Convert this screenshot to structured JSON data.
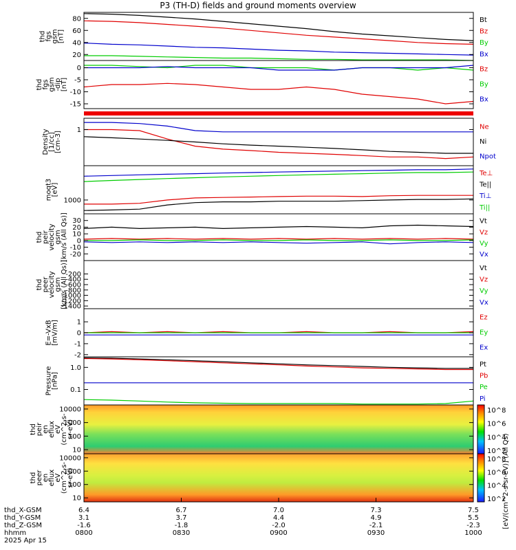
{
  "title": "P3 (TH-D) fields and ground moments overview",
  "colors": {
    "black": "#000000",
    "red": "#e00000",
    "green": "#00cc00",
    "blue": "#0000cc"
  },
  "chart_data": [
    {
      "type": "line",
      "ylabel": [
        "thd",
        "fgs",
        "gsm",
        "[nT]"
      ],
      "ylim": [
        10,
        90
      ],
      "yticks": [
        "80",
        "60",
        "40",
        "20"
      ],
      "series": [
        {
          "name": "Bt",
          "color": "black",
          "values": [
            88,
            87,
            85,
            82,
            79,
            75,
            71,
            67,
            63,
            58,
            54,
            51,
            48,
            45,
            43
          ]
        },
        {
          "name": "Bz",
          "color": "red",
          "values": [
            76,
            75,
            73,
            70,
            67,
            64,
            60,
            56,
            52,
            49,
            46,
            43,
            40,
            38,
            37
          ]
        },
        {
          "name": "By",
          "color": "green",
          "values": [
            18,
            18,
            17,
            16,
            15,
            14,
            14,
            13,
            12,
            12,
            11,
            11,
            11,
            11,
            10
          ]
        },
        {
          "name": "Bx",
          "color": "blue",
          "values": [
            39,
            37,
            36,
            34,
            32,
            31,
            29,
            27,
            26,
            24,
            23,
            22,
            21,
            20,
            19
          ]
        }
      ]
    },
    {
      "type": "line",
      "ylabel": [
        "thd",
        "fgs",
        "gsm",
        "-dip",
        "[nT]"
      ],
      "ylim": [
        -17,
        3
      ],
      "yticks": [
        "0",
        "-5",
        "-10",
        "-15"
      ],
      "series": [
        {
          "name": "Bz",
          "color": "red",
          "values": [
            -8,
            -7,
            -7,
            -6.5,
            -7,
            -8,
            -9,
            -9,
            -8,
            -9,
            -11,
            -12,
            -13,
            -15,
            -14
          ]
        },
        {
          "name": "By",
          "color": "green",
          "values": [
            1,
            1,
            0.5,
            0,
            1,
            1,
            0,
            0,
            0,
            -1,
            0,
            0,
            -1,
            0,
            -1
          ]
        },
        {
          "name": "Bx",
          "color": "blue",
          "values": [
            0,
            0,
            0,
            0.5,
            0,
            0,
            0,
            -1,
            -1,
            -1,
            0,
            0,
            0,
            0,
            1
          ]
        }
      ]
    },
    {
      "type": "line",
      "ylabel": [
        "Density",
        "[1/cc]",
        "[cm-3]"
      ],
      "ylim": [
        0.03,
        3
      ],
      "yticks": [
        "1"
      ],
      "series": [
        {
          "name": "Ne",
          "color": "red",
          "values": [
            1,
            1,
            0.9,
            0.4,
            0.2,
            0.15,
            0.13,
            0.11,
            0.1,
            0.09,
            0.08,
            0.07,
            0.07,
            0.06,
            0.07
          ]
        },
        {
          "name": "Ni",
          "color": "black",
          "values": [
            0.5,
            0.45,
            0.4,
            0.35,
            0.3,
            0.25,
            0.22,
            0.2,
            0.18,
            0.16,
            0.14,
            0.12,
            0.11,
            0.1,
            0.1
          ]
        },
        {
          "name": "Npot",
          "color": "blue",
          "values": [
            2,
            2,
            1.8,
            1.4,
            0.9,
            0.8,
            0.8,
            0.8,
            0.8,
            0.8,
            0.8,
            0.8,
            0.8,
            0.8,
            0.8
          ]
        }
      ]
    },
    {
      "type": "line",
      "ylabel": [
        "moqt3",
        "[eV]"
      ],
      "ylim": [
        300,
        20000
      ],
      "yticks": [
        "1000"
      ],
      "series": [
        {
          "name": "Te⊥",
          "color": "red",
          "values": [
            700,
            700,
            750,
            1000,
            1200,
            1250,
            1300,
            1350,
            1400,
            1400,
            1350,
            1450,
            1500,
            1500,
            1500
          ]
        },
        {
          "name": "Te||",
          "color": "black",
          "values": [
            400,
            420,
            450,
            650,
            800,
            850,
            850,
            900,
            900,
            900,
            950,
            1000,
            1050,
            1050,
            1100
          ]
        },
        {
          "name": "Ti⊥",
          "color": "blue",
          "values": [
            8000,
            8500,
            9000,
            9500,
            10000,
            10500,
            11000,
            11500,
            12000,
            12500,
            13000,
            13500,
            14000,
            14000,
            15000
          ]
        },
        {
          "name": "Ti||",
          "color": "green",
          "values": [
            5000,
            5500,
            6000,
            6500,
            7000,
            7500,
            8000,
            8500,
            9000,
            9500,
            10000,
            10500,
            11000,
            11000,
            11500
          ]
        }
      ]
    },
    {
      "type": "line",
      "ylabel": [
        "thd",
        "peir",
        "velocity",
        "gsm",
        "[km/s (All Qs)]"
      ],
      "ylim": [
        -30,
        40
      ],
      "yticks": [
        "30",
        "20",
        "10",
        "0",
        "-10",
        "-20"
      ],
      "series": [
        {
          "name": "Vt",
          "color": "black",
          "values": [
            18,
            20,
            18,
            19,
            20,
            18,
            19,
            20,
            21,
            20,
            19,
            22,
            23,
            22,
            21
          ]
        },
        {
          "name": "Vz",
          "color": "red",
          "values": [
            2,
            3,
            2,
            3,
            2,
            3,
            2,
            3,
            2,
            3,
            2,
            3,
            2,
            3,
            2
          ]
        },
        {
          "name": "Vy",
          "color": "green",
          "values": [
            0,
            0,
            1,
            0,
            0,
            1,
            0,
            0,
            1,
            0,
            0,
            1,
            0,
            0,
            1
          ]
        },
        {
          "name": "Vx",
          "color": "blue",
          "values": [
            -2,
            -3,
            -2,
            -3,
            -2,
            -3,
            -2,
            -3,
            -4,
            -3,
            -2,
            -5,
            -3,
            -2,
            -3
          ]
        }
      ]
    },
    {
      "type": "line",
      "ylabel": [
        "thd",
        "peer",
        "velocity",
        "gsm",
        "[km/s (All Qs)]"
      ],
      "ylim": [
        -1500,
        300
      ],
      "yticks": [
        "-200",
        "-400",
        "-600",
        "-800",
        "-1000",
        "-1200",
        "-1400"
      ],
      "series": [
        {
          "name": "Vt",
          "color": "black",
          "values": []
        },
        {
          "name": "Vz",
          "color": "red",
          "values": []
        },
        {
          "name": "Vy",
          "color": "green",
          "values": []
        },
        {
          "name": "Vx",
          "color": "blue",
          "values": []
        }
      ]
    },
    {
      "type": "line",
      "ylabel": [
        "E=-VxB",
        "[mV/m]"
      ],
      "ylim": [
        -2.2,
        2.2
      ],
      "yticks": [
        "1",
        "0",
        "-1",
        "-2"
      ],
      "series": [
        {
          "name": "Ez",
          "color": "red",
          "values": [
            0,
            0.1,
            0,
            0.1,
            0,
            0.1,
            0,
            0,
            0.1,
            0,
            0,
            0.1,
            0,
            0,
            0.1
          ]
        },
        {
          "name": "Ey",
          "color": "green",
          "values": [
            0,
            0,
            0,
            0,
            0,
            0,
            0,
            0,
            0,
            0,
            0,
            0,
            0,
            0,
            0
          ]
        },
        {
          "name": "Ex",
          "color": "blue",
          "values": [
            -0.2,
            -0.2,
            -0.2,
            -0.2,
            -0.2,
            -0.2,
            -0.2,
            -0.2,
            -0.2,
            -0.2,
            -0.2,
            -0.2,
            -0.2,
            -0.2,
            -0.2
          ]
        }
      ]
    },
    {
      "type": "line",
      "ylabel": [
        "Pressure",
        "[nPa]"
      ],
      "ylim": [
        0.02,
        3
      ],
      "yticks": [
        "1.0",
        "0.1"
      ],
      "series": [
        {
          "name": "Pt",
          "color": "black",
          "values": [
            2.7,
            2.6,
            2.4,
            2.2,
            2,
            1.8,
            1.6,
            1.45,
            1.3,
            1.2,
            1.1,
            1,
            0.95,
            0.9,
            0.9
          ]
        },
        {
          "name": "Pb",
          "color": "red",
          "values": [
            2.5,
            2.4,
            2.2,
            2,
            1.8,
            1.6,
            1.45,
            1.3,
            1.15,
            1.05,
            0.95,
            0.9,
            0.85,
            0.8,
            0.8
          ]
        },
        {
          "name": "Pe",
          "color": "green",
          "values": [
            0.035,
            0.033,
            0.03,
            0.027,
            0.025,
            0.024,
            0.023,
            0.023,
            0.023,
            0.023,
            0.022,
            0.022,
            0.022,
            0.023,
            0.03
          ]
        },
        {
          "name": "Pi",
          "color": "blue",
          "values": [
            0.2,
            0.2,
            0.2,
            0.2,
            0.2,
            0.2,
            0.2,
            0.2,
            0.2,
            0.2,
            0.2,
            0.2,
            0.2,
            0.2,
            0.2
          ]
        }
      ]
    },
    {
      "type": "heatmap",
      "ylabel": [
        "thd",
        "peir",
        "en",
        "eflux",
        "eV",
        "(cm^2-s-",
        "sr-eV)"
      ],
      "ylim": [
        5,
        20000
      ],
      "yticks": [
        "10000",
        "1000",
        "100",
        "10"
      ]
    },
    {
      "type": "heatmap",
      "ylabel": [
        "thd",
        "peer",
        "en",
        "eflux",
        "eV",
        "(cm^2-s-",
        "sr-eV)"
      ],
      "ylim": [
        5,
        20000
      ],
      "yticks": [
        "10000",
        "1000",
        "100",
        "10"
      ]
    }
  ],
  "colorbar": {
    "ticks": [
      "10^8",
      "10^6",
      "10^4",
      "10^2"
    ],
    "label": "[eV/(cm^2-s-sr-eV)] (All Qs)"
  },
  "xaxis": {
    "rows": [
      {
        "label": "thd_X-GSM",
        "values": [
          "6.4",
          "6.7",
          "7.0",
          "7.3",
          "7.5"
        ]
      },
      {
        "label": "thd_Y-GSM",
        "values": [
          "3.1",
          "3.7",
          "4.4",
          "4.9",
          "5.5"
        ]
      },
      {
        "label": "thd_Z-GSM",
        "values": [
          "-1.6",
          "-1.8",
          "-2.0",
          "-2.1",
          "-2.3"
        ]
      },
      {
        "label": "hhmm",
        "values": [
          "0800",
          "0830",
          "0900",
          "0930",
          "1000"
        ]
      }
    ],
    "date": "2025 Apr 15"
  }
}
